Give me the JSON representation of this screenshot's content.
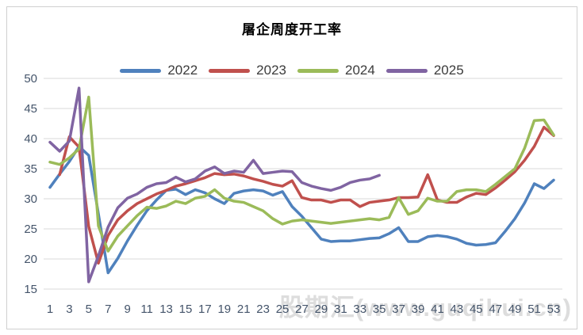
{
  "chart": {
    "title": "屠企周度开工率",
    "watermark": "股期汇(www.guqihui.cn)"
  },
  "chart_data": {
    "type": "line",
    "title": "屠企周度开工率",
    "xlabel": "",
    "ylabel": "",
    "x": [
      1,
      2,
      3,
      4,
      5,
      6,
      7,
      8,
      9,
      10,
      11,
      12,
      13,
      14,
      15,
      16,
      17,
      18,
      19,
      20,
      21,
      22,
      23,
      24,
      25,
      26,
      27,
      28,
      29,
      30,
      31,
      32,
      33,
      34,
      35,
      36,
      37,
      38,
      39,
      40,
      41,
      42,
      43,
      44,
      45,
      46,
      47,
      48,
      49,
      50,
      51,
      52,
      53
    ],
    "x_tick_labels": [
      "1",
      "3",
      "5",
      "7",
      "9",
      "11",
      "13",
      "15",
      "17",
      "19",
      "21",
      "23",
      "25",
      "27",
      "29",
      "31",
      "33",
      "35",
      "37",
      "39",
      "41",
      "43",
      "45",
      "47",
      "49",
      "51",
      "53"
    ],
    "x_tick_step": 2,
    "ylim": [
      15,
      50
    ],
    "y_ticks": [
      15,
      20,
      25,
      30,
      35,
      40,
      45,
      50
    ],
    "grid": "horizontal",
    "legend_position": "top",
    "styles": {
      "gridline_color": "#d9d9d9",
      "axis_label_color": "#44546a",
      "watermark_color": "#c8c8c8",
      "line_width": 3.5
    },
    "series": [
      {
        "name": "2022",
        "color": "#4F81BD",
        "values": [
          31.9,
          34.1,
          36.2,
          38.7,
          37.2,
          27.5,
          17.7,
          20.1,
          23.0,
          25.6,
          28.0,
          29.8,
          31.4,
          31.6,
          30.7,
          31.5,
          31.0,
          30.0,
          29.2,
          30.9,
          31.3,
          31.5,
          31.3,
          30.6,
          31.2,
          28.7,
          27.1,
          25.2,
          23.3,
          22.9,
          23.0,
          23.0,
          23.2,
          23.4,
          23.5,
          24.2,
          25.2,
          22.9,
          22.9,
          23.7,
          23.9,
          23.7,
          23.3,
          22.6,
          22.3,
          22.4,
          22.7,
          24.6,
          26.7,
          29.3,
          32.5,
          31.7,
          33.1
        ]
      },
      {
        "name": "2023",
        "color": "#C0504D",
        "values": [
          null,
          34.0,
          40.3,
          38.6,
          25.4,
          19.3,
          23.9,
          26.5,
          28.0,
          29.2,
          30.0,
          30.8,
          31.4,
          32.1,
          32.5,
          33.0,
          33.5,
          34.2,
          34.0,
          34.1,
          33.8,
          33.3,
          32.9,
          32.4,
          32.1,
          33.0,
          30.2,
          29.8,
          29.8,
          29.4,
          29.8,
          29.8,
          28.7,
          29.4,
          29.6,
          29.8,
          30.2,
          30.2,
          30.3,
          34.0,
          29.8,
          29.4,
          29.4,
          30.3,
          30.9,
          30.7,
          31.8,
          33.1,
          34.5,
          36.4,
          38.7,
          41.9,
          40.5
        ]
      },
      {
        "name": "2024",
        "color": "#9BBB59",
        "values": [
          36.1,
          35.7,
          36.8,
          38.3,
          46.9,
          25.5,
          21.3,
          23.8,
          25.5,
          27.2,
          28.6,
          28.4,
          28.8,
          29.6,
          29.2,
          30.1,
          30.4,
          31.5,
          30.1,
          29.6,
          29.4,
          28.7,
          28.0,
          26.7,
          25.8,
          26.3,
          26.5,
          26.3,
          26.1,
          25.9,
          26.1,
          26.3,
          26.5,
          26.7,
          26.5,
          26.9,
          30.2,
          27.4,
          28.0,
          30.1,
          29.6,
          29.6,
          31.2,
          31.5,
          31.5,
          31.2,
          32.4,
          33.7,
          35.0,
          38.4,
          43.0,
          43.1,
          40.6
        ]
      },
      {
        "name": "2025",
        "color": "#8064A2",
        "values": [
          39.4,
          37.9,
          39.6,
          48.4,
          16.2,
          20.5,
          25.3,
          28.5,
          30.1,
          30.8,
          31.9,
          32.5,
          32.7,
          33.6,
          32.8,
          33.3,
          34.6,
          35.3,
          34.2,
          34.6,
          34.4,
          36.4,
          34.2,
          34.4,
          34.6,
          34.5,
          32.7,
          32.1,
          31.7,
          31.4,
          31.9,
          32.7,
          33.1,
          33.3,
          33.9
        ]
      }
    ]
  }
}
